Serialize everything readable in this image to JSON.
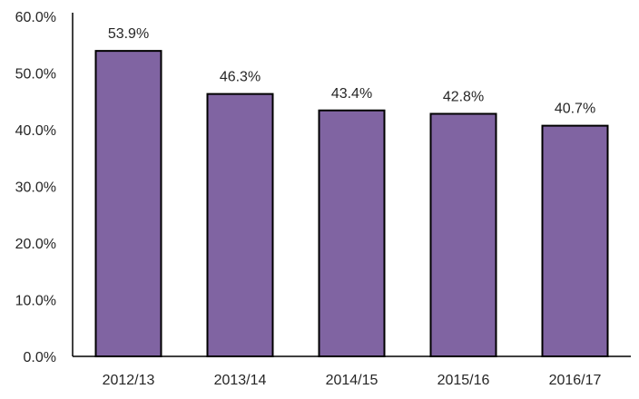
{
  "chart_data": {
    "type": "bar",
    "title": "",
    "xlabel": "",
    "ylabel": "",
    "categories": [
      "2012/13",
      "2013/14",
      "2014/15",
      "2015/16",
      "2016/17"
    ],
    "values": [
      53.9,
      46.3,
      43.4,
      42.8,
      40.7
    ],
    "data_labels": [
      "53.9%",
      "46.3%",
      "43.4%",
      "42.8%",
      "40.7%"
    ],
    "ylim": [
      0,
      60
    ],
    "yticks": [
      0,
      10,
      20,
      30,
      40,
      50,
      60
    ],
    "ytick_labels": [
      "0.0%",
      "10.0%",
      "20.0%",
      "30.0%",
      "40.0%",
      "50.0%",
      "60.0%"
    ],
    "grid": false,
    "legend": "none",
    "bar_color": "#8064A2",
    "bar_edge_color": "#000000"
  }
}
